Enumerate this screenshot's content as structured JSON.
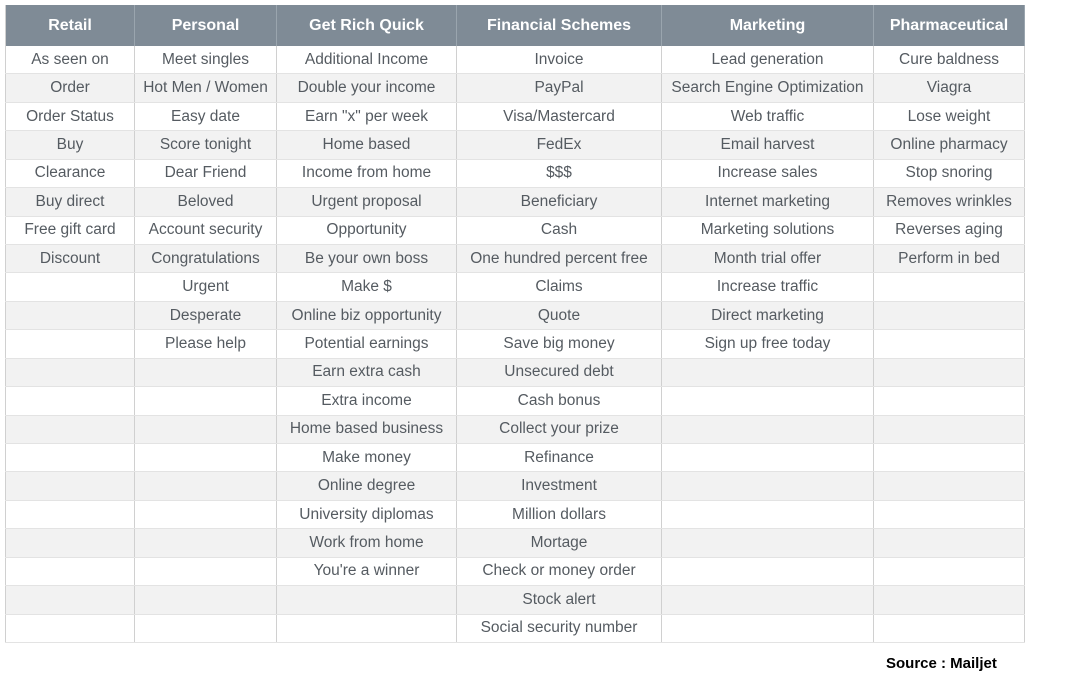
{
  "table": {
    "columns": [
      {
        "header": "Retail",
        "items": [
          "As seen on",
          "Order",
          "Order Status",
          "Buy",
          "Clearance",
          "Buy direct",
          "Free gift card",
          "Discount"
        ]
      },
      {
        "header": "Personal",
        "items": [
          "Meet singles",
          "Hot Men / Women",
          "Easy date",
          "Score tonight",
          "Dear Friend",
          "Beloved",
          "Account security",
          "Congratulations",
          "Urgent",
          "Desperate",
          "Please help"
        ]
      },
      {
        "header": "Get Rich Quick",
        "items": [
          "Additional Income",
          "Double your income",
          "Earn \"x\" per week",
          "Home based",
          "Income from home",
          "Urgent proposal",
          "Opportunity",
          "Be your own boss",
          "Make $",
          "Online biz opportunity",
          "Potential earnings",
          "Earn extra cash",
          "Extra income",
          "Home based business",
          "Make money",
          "Online degree",
          "University diplomas",
          "Work from home",
          "You're a winner"
        ]
      },
      {
        "header": "Financial Schemes",
        "items": [
          "Invoice",
          "PayPal",
          "Visa/Mastercard",
          "FedEx",
          "$$$",
          "Beneficiary",
          "Cash",
          "One hundred percent free",
          "Claims",
          "Quote",
          "Save big money",
          "Unsecured debt",
          "Cash bonus",
          "Collect your prize",
          "Refinance",
          "Investment",
          "Million dollars",
          "Mortage",
          "Check or money order",
          "Stock alert",
          "Social security number"
        ]
      },
      {
        "header": "Marketing",
        "items": [
          "Lead generation",
          "Search Engine Optimization",
          "Web traffic",
          "Email harvest",
          "Increase sales",
          "Internet marketing",
          "Marketing solutions",
          "Month trial offer",
          "Increase traffic",
          "Direct marketing",
          "Sign up free today"
        ]
      },
      {
        "header": "Pharmaceutical",
        "items": [
          "Cure baldness",
          "Viagra",
          "Lose weight",
          "Online pharmacy",
          "Stop snoring",
          "Removes wrinkles",
          "Reverses aging",
          "Perform in bed"
        ]
      }
    ]
  },
  "source": "Source : Mailjet"
}
